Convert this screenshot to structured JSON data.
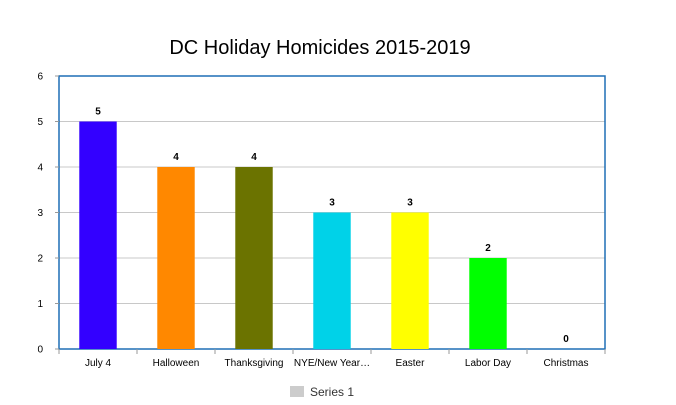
{
  "chart_data": {
    "type": "bar",
    "title": "DC Holiday Homicides 2015-2019",
    "xlabel": "",
    "ylabel": "",
    "categories": [
      "July 4",
      "Halloween",
      "Thanksgiving",
      "NYE/New Year…",
      "Easter",
      "Labor Day",
      "Christmas"
    ],
    "series": [
      {
        "name": "Series 1",
        "values": [
          5,
          4,
          4,
          3,
          3,
          2,
          0
        ],
        "colors": [
          "#3300ff",
          "#ff8800",
          "#6b7300",
          "#00d2e8",
          "#ffff00",
          "#00ff00",
          "#999999"
        ]
      }
    ],
    "ylim": [
      0,
      6
    ],
    "yticks": [
      0,
      1,
      2,
      3,
      4,
      5,
      6
    ],
    "grid": true,
    "legend": {
      "placement": "bottom-center",
      "swatch_color": "#cccccc"
    },
    "frame_color": "#1f6fb5",
    "grid_color": "#c8c8c8"
  }
}
